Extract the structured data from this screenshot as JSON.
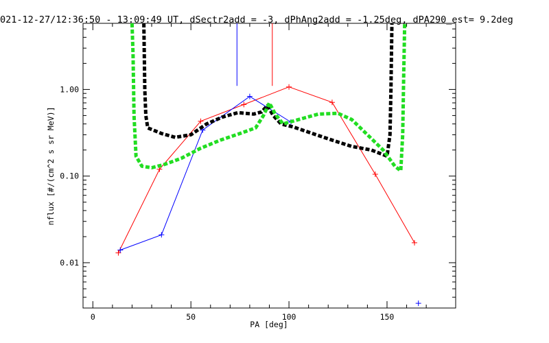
{
  "chart_data": {
    "type": "line",
    "title": "021-12-27/12:36:50 - 13:09:49 UT, dSectr2add = -3, dPhAng2add = -1.25deg, dPA290_est=   9.2deg",
    "xlabel": "PA [deg]",
    "ylabel": "nflux [#/(cm^2 s sr MeV)]",
    "xlim": [
      -5,
      185
    ],
    "ylim": [
      0.003,
      5.8
    ],
    "yscale": "log",
    "x_ticks": [
      0,
      50,
      100,
      150
    ],
    "y_ticks": [
      0.01,
      0.1,
      1.0
    ],
    "x_tick_labels": [
      "0",
      "50",
      "100",
      "150"
    ],
    "y_tick_labels": [
      "0.01",
      "0.10",
      "1.00"
    ],
    "grid": false,
    "legend": "none",
    "series": [
      {
        "color": "#ff0000",
        "style": "line-plus",
        "x": [
          13,
          34,
          55,
          77,
          100,
          122,
          144,
          164
        ],
        "y": [
          0.013,
          0.12,
          0.43,
          0.67,
          1.07,
          0.71,
          0.105,
          0.017
        ]
      },
      {
        "color": "#0000ff",
        "style": "line-plus",
        "x": [
          14,
          35,
          56,
          80,
          101
        ],
        "y": [
          0.014,
          0.021,
          0.34,
          0.83,
          0.42
        ]
      },
      {
        "color": "#0000ff",
        "style": "plus",
        "x": [
          166
        ],
        "y": [
          0.0034
        ]
      },
      {
        "color": "#000000",
        "style": "thick-dashed",
        "x": [
          26,
          26.5,
          27,
          28,
          35,
          42,
          50,
          58,
          66,
          74,
          82,
          86,
          89,
          92,
          96,
          102,
          112,
          122,
          132,
          142,
          150,
          151.5,
          152,
          152.5
        ],
        "y": [
          5.8,
          1.0,
          0.5,
          0.36,
          0.31,
          0.28,
          0.3,
          0.4,
          0.48,
          0.54,
          0.52,
          0.55,
          0.65,
          0.5,
          0.4,
          0.37,
          0.31,
          0.26,
          0.22,
          0.2,
          0.17,
          0.3,
          1.0,
          5.8
        ]
      },
      {
        "color": "#22dd22",
        "style": "thick-dashed",
        "x": [
          20,
          20.5,
          21,
          22,
          25,
          30,
          36,
          45,
          55,
          65,
          75,
          83,
          87,
          90,
          93,
          97,
          105,
          115,
          125,
          132,
          140,
          148,
          154,
          157,
          158,
          158.5,
          159
        ],
        "y": [
          5.8,
          2.5,
          0.5,
          0.17,
          0.13,
          0.125,
          0.135,
          0.16,
          0.21,
          0.26,
          0.31,
          0.36,
          0.5,
          0.7,
          0.52,
          0.4,
          0.45,
          0.52,
          0.53,
          0.45,
          0.3,
          0.2,
          0.13,
          0.115,
          0.3,
          1.5,
          5.8
        ]
      },
      {
        "color": "#0000ff",
        "style": "line",
        "x": [
          73.5,
          73.5
        ],
        "y": [
          5.8,
          1.1
        ]
      },
      {
        "color": "#ff0000",
        "style": "line",
        "x": [
          91.5,
          91.5
        ],
        "y": [
          5.8,
          1.1
        ]
      }
    ]
  }
}
